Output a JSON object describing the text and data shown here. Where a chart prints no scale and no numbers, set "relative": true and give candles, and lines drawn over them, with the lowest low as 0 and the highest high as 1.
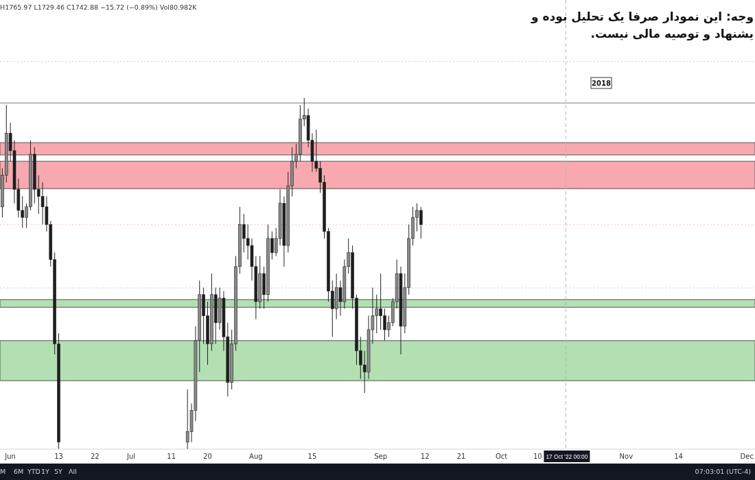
{
  "chart_data": {
    "type": "candlestick",
    "relative": true,
    "x": [
      "2022-05-30",
      "2022-05-31",
      "2022-06-01",
      "2022-06-02",
      "2022-06-03",
      "2022-06-04",
      "2022-06-05",
      "2022-06-06",
      "2022-06-07",
      "2022-06-08",
      "2022-06-09",
      "2022-06-10",
      "2022-06-11",
      "2022-06-12",
      "2022-06-13",
      "2022-07-15",
      "2022-07-16",
      "2022-07-17",
      "2022-07-18",
      "2022-07-19",
      "2022-07-20",
      "2022-07-21",
      "2022-07-22",
      "2022-07-23",
      "2022-07-24",
      "2022-07-25",
      "2022-07-26",
      "2022-07-27",
      "2022-07-28",
      "2022-07-29",
      "2022-07-30",
      "2022-07-31",
      "2022-08-01",
      "2022-08-02",
      "2022-08-03",
      "2022-08-04",
      "2022-08-05",
      "2022-08-06",
      "2022-08-07",
      "2022-08-08",
      "2022-08-09",
      "2022-08-10",
      "2022-08-11",
      "2022-08-12",
      "2022-08-13",
      "2022-08-14",
      "2022-08-15",
      "2022-08-16",
      "2022-08-17",
      "2022-08-18",
      "2022-08-19",
      "2022-08-20",
      "2022-08-21",
      "2022-08-22",
      "2022-08-23",
      "2022-08-24",
      "2022-08-25",
      "2022-08-26",
      "2022-08-27",
      "2022-08-28",
      "2022-08-29",
      "2022-08-30",
      "2022-08-31",
      "2022-09-01",
      "2022-09-02",
      "2022-09-03",
      "2022-09-04",
      "2022-09-05",
      "2022-09-06",
      "2022-09-07",
      "2022-09-08",
      "2022-09-09",
      "2022-09-10",
      "2022-09-11"
    ],
    "ohlc": [
      [
        0.69,
        0.8,
        0.66,
        0.78
      ],
      [
        0.78,
        0.98,
        0.76,
        0.9
      ],
      [
        0.9,
        0.93,
        0.82,
        0.85
      ],
      [
        0.85,
        0.88,
        0.7,
        0.74
      ],
      [
        0.74,
        0.77,
        0.66,
        0.68
      ],
      [
        0.68,
        0.72,
        0.63,
        0.66
      ],
      [
        0.66,
        0.7,
        0.63,
        0.69
      ],
      [
        0.69,
        0.88,
        0.68,
        0.84
      ],
      [
        0.84,
        0.86,
        0.7,
        0.74
      ],
      [
        0.74,
        0.78,
        0.67,
        0.72
      ],
      [
        0.72,
        0.76,
        0.64,
        0.69
      ],
      [
        0.69,
        0.72,
        0.62,
        0.64
      ],
      [
        0.64,
        0.65,
        0.52,
        0.54
      ],
      [
        0.54,
        0.56,
        0.27,
        0.3
      ],
      [
        0.3,
        0.33,
        0,
        0.02
      ],
      [
        0.02,
        0.17,
        0,
        0.05
      ],
      [
        0.05,
        0.13,
        0.02,
        0.11
      ],
      [
        0.11,
        0.35,
        0.08,
        0.31
      ],
      [
        0.31,
        0.48,
        0.22,
        0.44
      ],
      [
        0.44,
        0.46,
        0.3,
        0.38
      ],
      [
        0.38,
        0.42,
        0.24,
        0.3
      ],
      [
        0.3,
        0.5,
        0.28,
        0.44
      ],
      [
        0.44,
        0.46,
        0.3,
        0.36
      ],
      [
        0.36,
        0.46,
        0.34,
        0.43
      ],
      [
        0.43,
        0.45,
        0.28,
        0.32
      ],
      [
        0.32,
        0.36,
        0.15,
        0.19
      ],
      [
        0.19,
        0.34,
        0.17,
        0.3
      ],
      [
        0.3,
        0.55,
        0.28,
        0.52
      ],
      [
        0.52,
        0.69,
        0.5,
        0.64
      ],
      [
        0.64,
        0.67,
        0.56,
        0.6
      ],
      [
        0.6,
        0.64,
        0.54,
        0.58
      ],
      [
        0.58,
        0.6,
        0.48,
        0.52
      ],
      [
        0.52,
        0.55,
        0.37,
        0.42
      ],
      [
        0.42,
        0.55,
        0.4,
        0.5
      ],
      [
        0.5,
        0.52,
        0.4,
        0.44
      ],
      [
        0.44,
        0.64,
        0.42,
        0.6
      ],
      [
        0.6,
        0.62,
        0.54,
        0.56
      ],
      [
        0.56,
        0.63,
        0.55,
        0.6
      ],
      [
        0.6,
        0.74,
        0.58,
        0.7
      ],
      [
        0.7,
        0.72,
        0.52,
        0.58
      ],
      [
        0.58,
        0.79,
        0.56,
        0.75
      ],
      [
        0.75,
        0.86,
        0.72,
        0.82
      ],
      [
        0.82,
        0.87,
        0.8,
        0.84
      ],
      [
        0.84,
        0.98,
        0.82,
        0.94
      ],
      [
        0.94,
        1.0,
        0.92,
        0.95
      ],
      [
        0.95,
        0.97,
        0.86,
        0.88
      ],
      [
        0.88,
        0.9,
        0.79,
        0.82
      ],
      [
        0.82,
        0.91,
        0.79,
        0.8
      ],
      [
        0.8,
        0.82,
        0.73,
        0.76
      ],
      [
        0.76,
        0.78,
        0.6,
        0.62
      ],
      [
        0.62,
        0.63,
        0.42,
        0.45
      ],
      [
        0.45,
        0.48,
        0.32,
        0.4
      ],
      [
        0.4,
        0.5,
        0.37,
        0.46
      ],
      [
        0.46,
        0.48,
        0.38,
        0.42
      ],
      [
        0.42,
        0.54,
        0.4,
        0.52
      ],
      [
        0.52,
        0.6,
        0.5,
        0.56
      ],
      [
        0.56,
        0.58,
        0.4,
        0.43
      ],
      [
        0.43,
        0.44,
        0.24,
        0.28
      ],
      [
        0.28,
        0.32,
        0.2,
        0.24
      ],
      [
        0.24,
        0.28,
        0.16,
        0.22
      ],
      [
        0.22,
        0.38,
        0.2,
        0.34
      ],
      [
        0.34,
        0.46,
        0.3,
        0.38
      ],
      [
        0.38,
        0.44,
        0.33,
        0.4
      ],
      [
        0.4,
        0.5,
        0.34,
        0.38
      ],
      [
        0.38,
        0.4,
        0.31,
        0.34
      ],
      [
        0.34,
        0.38,
        0.32,
        0.36
      ],
      [
        0.36,
        0.43,
        0.35,
        0.42
      ],
      [
        0.42,
        0.54,
        0.4,
        0.5
      ],
      [
        0.5,
        0.52,
        0.27,
        0.35
      ],
      [
        0.35,
        0.5,
        0.33,
        0.46
      ],
      [
        0.46,
        0.64,
        0.44,
        0.6
      ],
      [
        0.6,
        0.69,
        0.58,
        0.66
      ],
      [
        0.66,
        0.7,
        0.62,
        0.68
      ],
      [
        0.68,
        0.69,
        0.6,
        0.64
      ]
    ],
    "xlim": [
      "2022-05-29T10:00",
      "2022-12-03T00:00"
    ],
    "xticks": [
      {
        "value": "2022-06-01",
        "label": "Jun"
      },
      {
        "value": "2022-06-13",
        "label": "13"
      },
      {
        "value": "2022-06-22",
        "label": "22"
      },
      {
        "value": "2022-07-01",
        "label": "Jul"
      },
      {
        "value": "2022-07-11",
        "label": "11"
      },
      {
        "value": "2022-07-20",
        "label": "20"
      },
      {
        "value": "2022-08-01",
        "label": "Aug"
      },
      {
        "value": "2022-08-15",
        "label": "15"
      },
      {
        "value": "2022-09-01",
        "label": "Sep"
      },
      {
        "value": "2022-09-12",
        "label": "12"
      },
      {
        "value": "2022-09-21",
        "label": "21"
      },
      {
        "value": "2022-10-01",
        "label": "Oct"
      },
      {
        "value": "2022-10-10",
        "label": "10"
      },
      {
        "value": "2022-11-01",
        "label": "Nov"
      },
      {
        "value": "2022-11-14",
        "label": "14"
      },
      {
        "value": "2022-12-01",
        "label": "Dec"
      }
    ],
    "bands": [
      {
        "axis": "y",
        "from": 0.838,
        "to": 0.873,
        "color": "#f7a9af"
      },
      {
        "axis": "y",
        "from": 0.742,
        "to": 0.82,
        "color": "#f7a9af"
      },
      {
        "axis": "y",
        "from": 0.404,
        "to": 0.426,
        "color": "#b3dfb2"
      },
      {
        "axis": "y",
        "from": 0.195,
        "to": 0.309,
        "color": "#b3dfb2"
      }
    ],
    "ref_lines": [
      {
        "axis": "y",
        "value": 0.986,
        "color": "#787b86",
        "line_style": "solid"
      },
      {
        "axis": "y",
        "value": 1.104,
        "color": "#c8cad0",
        "line_style": "dotted"
      },
      {
        "axis": "y",
        "value": 0.459,
        "color": "#c8cad0",
        "line_style": "dotted"
      },
      {
        "axis": "y",
        "value": 0.639,
        "color": "#f5c2c6",
        "line_style": "dotted"
      },
      {
        "axis": "x",
        "value": "2022-10-17",
        "label": "17 Oct '22  00:00",
        "color": "#b2b5be",
        "line_style": "dashed"
      }
    ],
    "annotations": [
      "H1765.97 L1729.46 C1742.88 −15.72 (−0.89%) Vol80.982K",
      "وجه: این نمودار صرفا یک تحلیل بوده و",
      "یشنهاد و توصیه مالی نیست.",
      "2018",
      "M",
      "6M",
      "YTD",
      "1Y",
      "5Y",
      "All",
      "07:03:01 (UTC-4)"
    ]
  }
}
